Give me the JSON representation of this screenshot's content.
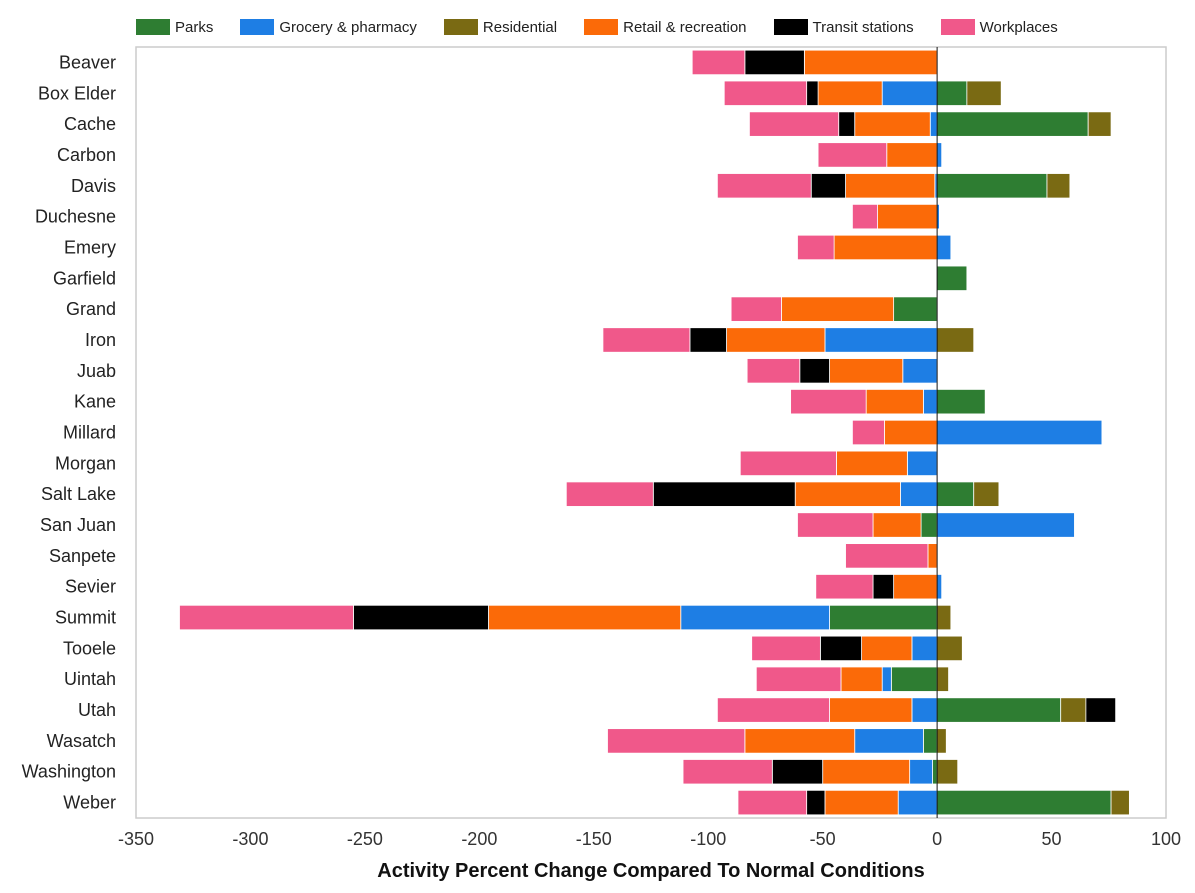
{
  "chart_data": {
    "type": "bar",
    "orientation": "horizontal",
    "stacked": true,
    "xlabel": "Activity Percent Change Compared To Normal Conditions",
    "xlim": [
      -350,
      100
    ],
    "xticks": [
      -350,
      -300,
      -250,
      -200,
      -150,
      -100,
      -50,
      0,
      50,
      100
    ],
    "legend_position": "top",
    "grid": false,
    "categories": [
      "Beaver",
      "Box Elder",
      "Cache",
      "Carbon",
      "Davis",
      "Duchesne",
      "Emery",
      "Garfield",
      "Grand",
      "Iron",
      "Juab",
      "Kane",
      "Millard",
      "Morgan",
      "Salt Lake",
      "San Juan",
      "Sanpete",
      "Sevier",
      "Summit",
      "Tooele",
      "Uintah",
      "Utah",
      "Wasatch",
      "Washington",
      "Weber"
    ],
    "series": [
      {
        "name": "Parks",
        "color": "#2e7d32",
        "values": [
          0,
          13,
          66,
          0,
          48,
          0,
          0,
          13,
          -19,
          0,
          0,
          21,
          0,
          0,
          16,
          -7,
          0,
          0,
          -47,
          0,
          -20,
          54,
          -6,
          -2,
          76
        ]
      },
      {
        "name": "Grocery & pharmacy",
        "color": "#1e7ee4",
        "values": [
          0,
          -24,
          -3,
          2,
          -1,
          1,
          6,
          0,
          0,
          -49,
          -15,
          -6,
          72,
          -13,
          -16,
          60,
          0,
          2,
          -65,
          -11,
          -4,
          -11,
          -30,
          -10,
          -17
        ]
      },
      {
        "name": "Residential",
        "color": "#7a6a13",
        "values": [
          0,
          15,
          10,
          0,
          10,
          0,
          0,
          0,
          0,
          16,
          0,
          0,
          0,
          0,
          11,
          0,
          0,
          0,
          6,
          11,
          5,
          11,
          4,
          9,
          8
        ]
      },
      {
        "name": "Retail & recreation",
        "color": "#fb6a08",
        "values": [
          -58,
          -28,
          -33,
          -22,
          -39,
          -26,
          -45,
          0,
          -49,
          -43,
          -32,
          -25,
          -23,
          -31,
          -46,
          -21,
          -4,
          -19,
          -84,
          -22,
          -18,
          -36,
          -48,
          -38,
          -32
        ]
      },
      {
        "name": "Transit stations",
        "color": "#000000",
        "values": [
          -26,
          -5,
          -7,
          0,
          -15,
          0,
          0,
          0,
          0,
          -16,
          -13,
          0,
          0,
          0,
          -62,
          0,
          0,
          -9,
          -59,
          -18,
          0,
          13,
          0,
          -22,
          -8
        ]
      },
      {
        "name": "Workplaces",
        "color": "#f0588a",
        "values": [
          -23,
          -36,
          -39,
          -30,
          -41,
          -11,
          -16,
          0,
          -22,
          -38,
          -23,
          -33,
          -14,
          -42,
          -38,
          -33,
          -36,
          -25,
          -76,
          -30,
          -37,
          -49,
          -60,
          -39,
          -30
        ]
      }
    ]
  }
}
